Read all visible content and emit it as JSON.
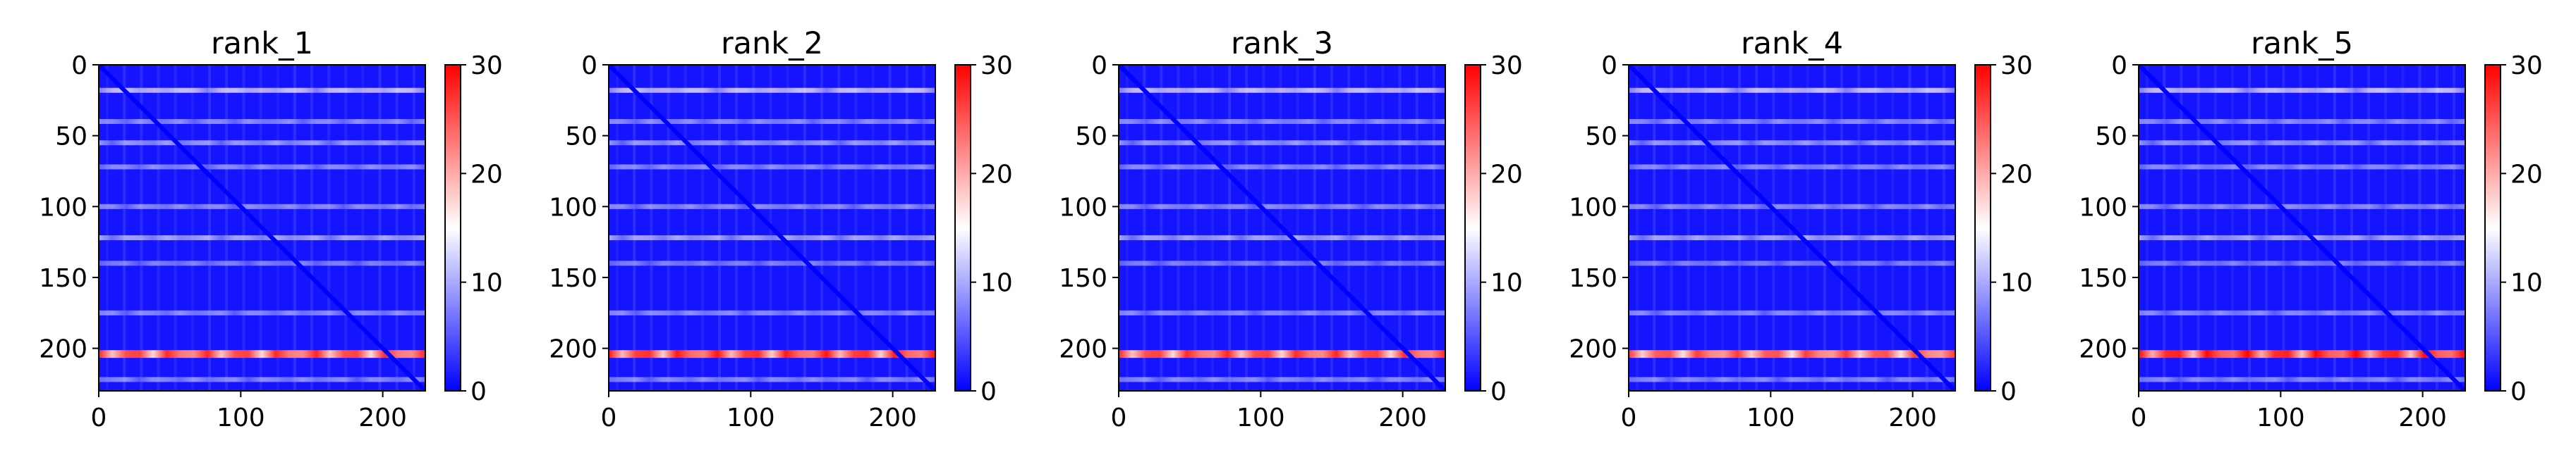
{
  "chart_data": [
    {
      "type": "heatmap",
      "title": "rank_1",
      "x_range": [
        0,
        230
      ],
      "y_range": [
        0,
        230
      ],
      "y_inverted": true,
      "x_ticks": [
        0,
        100,
        200
      ],
      "y_ticks": [
        0,
        50,
        100,
        150,
        200
      ],
      "colorbar": {
        "range": [
          0,
          30
        ],
        "ticks": [
          0,
          10,
          20,
          30
        ],
        "colors": [
          "#0000ff",
          "#ffffff",
          "#ff0000"
        ]
      },
      "bright_rows": [
        {
          "y": 18,
          "value": 17
        },
        {
          "y": 40,
          "value": 11
        },
        {
          "y": 55,
          "value": 12
        },
        {
          "y": 72,
          "value": 11
        },
        {
          "y": 100,
          "value": 11
        },
        {
          "y": 122,
          "value": 13
        },
        {
          "y": 140,
          "value": 10
        },
        {
          "y": 175,
          "value": 11
        },
        {
          "y": 204,
          "value": 28
        },
        {
          "y": 222,
          "value": 11
        }
      ],
      "diagonal_value": 0
    },
    {
      "type": "heatmap",
      "title": "rank_2",
      "x_range": [
        0,
        230
      ],
      "y_range": [
        0,
        230
      ],
      "y_inverted": true,
      "x_ticks": [
        0,
        100,
        200
      ],
      "y_ticks": [
        0,
        50,
        100,
        150,
        200
      ],
      "colorbar": {
        "range": [
          0,
          30
        ],
        "ticks": [
          0,
          10,
          20,
          30
        ],
        "colors": [
          "#0000ff",
          "#ffffff",
          "#ff0000"
        ]
      },
      "bright_rows": [
        {
          "y": 18,
          "value": 17
        },
        {
          "y": 40,
          "value": 11
        },
        {
          "y": 55,
          "value": 12
        },
        {
          "y": 72,
          "value": 11
        },
        {
          "y": 100,
          "value": 11
        },
        {
          "y": 122,
          "value": 13
        },
        {
          "y": 140,
          "value": 10
        },
        {
          "y": 175,
          "value": 11
        },
        {
          "y": 204,
          "value": 29
        },
        {
          "y": 222,
          "value": 11
        }
      ],
      "diagonal_value": 0
    },
    {
      "type": "heatmap",
      "title": "rank_3",
      "x_range": [
        0,
        230
      ],
      "y_range": [
        0,
        230
      ],
      "y_inverted": true,
      "x_ticks": [
        0,
        100,
        200
      ],
      "y_ticks": [
        0,
        50,
        100,
        150,
        200
      ],
      "colorbar": {
        "range": [
          0,
          30
        ],
        "ticks": [
          0,
          10,
          20,
          30
        ],
        "colors": [
          "#0000ff",
          "#ffffff",
          "#ff0000"
        ]
      },
      "bright_rows": [
        {
          "y": 18,
          "value": 17
        },
        {
          "y": 40,
          "value": 11
        },
        {
          "y": 55,
          "value": 12
        },
        {
          "y": 72,
          "value": 11
        },
        {
          "y": 100,
          "value": 11
        },
        {
          "y": 122,
          "value": 13
        },
        {
          "y": 140,
          "value": 10
        },
        {
          "y": 175,
          "value": 11
        },
        {
          "y": 204,
          "value": 28
        },
        {
          "y": 222,
          "value": 11
        }
      ],
      "diagonal_value": 0
    },
    {
      "type": "heatmap",
      "title": "rank_4",
      "x_range": [
        0,
        230
      ],
      "y_range": [
        0,
        230
      ],
      "y_inverted": true,
      "x_ticks": [
        0,
        100,
        200
      ],
      "y_ticks": [
        0,
        50,
        100,
        150,
        200
      ],
      "colorbar": {
        "range": [
          0,
          30
        ],
        "ticks": [
          0,
          10,
          20,
          30
        ],
        "colors": [
          "#0000ff",
          "#ffffff",
          "#ff0000"
        ]
      },
      "bright_rows": [
        {
          "y": 18,
          "value": 17
        },
        {
          "y": 40,
          "value": 11
        },
        {
          "y": 55,
          "value": 12
        },
        {
          "y": 72,
          "value": 11
        },
        {
          "y": 100,
          "value": 11
        },
        {
          "y": 122,
          "value": 13
        },
        {
          "y": 140,
          "value": 10
        },
        {
          "y": 175,
          "value": 11
        },
        {
          "y": 204,
          "value": 27
        },
        {
          "y": 222,
          "value": 11
        }
      ],
      "diagonal_value": 0
    },
    {
      "type": "heatmap",
      "title": "rank_5",
      "x_range": [
        0,
        230
      ],
      "y_range": [
        0,
        230
      ],
      "y_inverted": true,
      "x_ticks": [
        0,
        100,
        200
      ],
      "y_ticks": [
        0,
        50,
        100,
        150,
        200
      ],
      "colorbar": {
        "range": [
          0,
          30
        ],
        "ticks": [
          0,
          10,
          20,
          30
        ],
        "colors": [
          "#0000ff",
          "#ffffff",
          "#ff0000"
        ]
      },
      "bright_rows": [
        {
          "y": 18,
          "value": 17
        },
        {
          "y": 40,
          "value": 11
        },
        {
          "y": 55,
          "value": 12
        },
        {
          "y": 72,
          "value": 11
        },
        {
          "y": 100,
          "value": 11
        },
        {
          "y": 122,
          "value": 13
        },
        {
          "y": 140,
          "value": 10
        },
        {
          "y": 175,
          "value": 11
        },
        {
          "y": 204,
          "value": 30
        },
        {
          "y": 222,
          "value": 11
        }
      ],
      "diagonal_value": 0
    }
  ]
}
